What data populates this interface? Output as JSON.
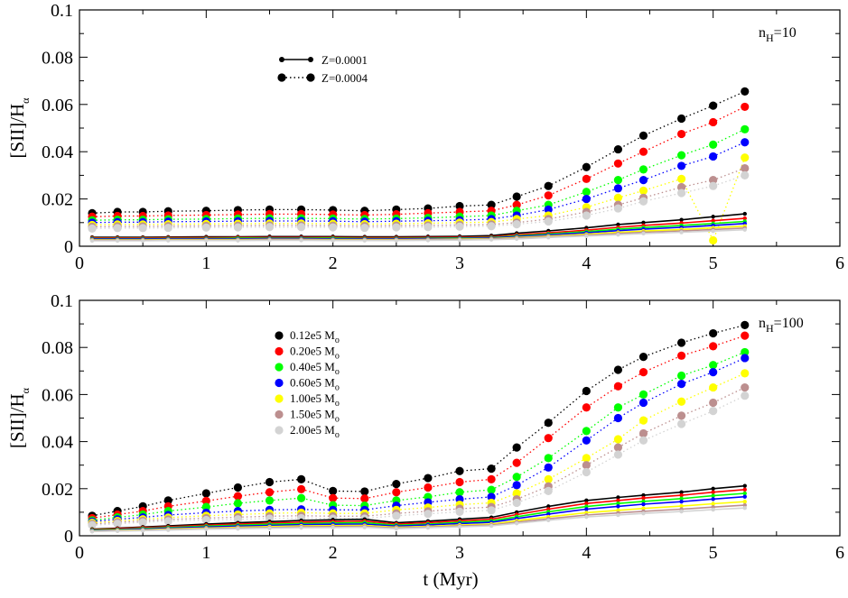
{
  "chart_data": [
    {
      "type": "line",
      "panel": "top",
      "annotation": "n_H=10",
      "annotation_main": "n",
      "annotation_sub": "H",
      "annotation_rest": "=10",
      "ylabel_main": "[SII]/H",
      "ylabel_sub": "α",
      "xlabel": "",
      "xlim": [
        0,
        6
      ],
      "ylim": [
        0,
        0.1
      ],
      "xticks": [
        "0",
        "1",
        "2",
        "3",
        "4",
        "5",
        "6"
      ],
      "yticks": [
        "0",
        "0.02",
        "0.04",
        "0.06",
        "0.08",
        "0.1"
      ],
      "legend": [
        {
          "label": "Z=0.0001",
          "style": "solid"
        },
        {
          "label": "Z=0.0004",
          "style": "dotted"
        }
      ],
      "x": [
        0.1,
        0.3,
        0.5,
        0.7,
        1.0,
        1.25,
        1.5,
        1.75,
        2.0,
        2.25,
        2.5,
        2.75,
        3.0,
        3.25,
        3.45,
        3.7,
        4.0,
        4.25,
        4.45,
        4.75,
        5.0,
        5.25
      ],
      "series": [
        {
          "name": "0.12e5 Mo Z=0.0004",
          "color": "#000000",
          "style": "dotted",
          "values": [
            0.014,
            0.0145,
            0.0145,
            0.0148,
            0.015,
            0.0153,
            0.0155,
            0.0155,
            0.0153,
            0.015,
            0.0155,
            0.016,
            0.017,
            0.0175,
            0.021,
            0.0255,
            0.0335,
            0.041,
            0.0468,
            0.054,
            0.0595,
            0.0655
          ]
        },
        {
          "name": "0.20e5 Mo Z=0.0004",
          "color": "#ff0000",
          "style": "dotted",
          "values": [
            0.0125,
            0.0128,
            0.0128,
            0.013,
            0.0132,
            0.0134,
            0.0136,
            0.0136,
            0.0134,
            0.0132,
            0.0135,
            0.014,
            0.0145,
            0.015,
            0.0175,
            0.0215,
            0.0285,
            0.035,
            0.04,
            0.0475,
            0.0525,
            0.059
          ]
        },
        {
          "name": "0.40e5 Mo Z=0.0004",
          "color": "#00ff00",
          "style": "dotted",
          "values": [
            0.011,
            0.0112,
            0.0112,
            0.0114,
            0.0115,
            0.0117,
            0.0118,
            0.0118,
            0.0117,
            0.0115,
            0.0117,
            0.012,
            0.0125,
            0.013,
            0.015,
            0.0175,
            0.023,
            0.028,
            0.0325,
            0.0385,
            0.043,
            0.0495
          ]
        },
        {
          "name": "0.60e5 Mo Z=0.0004",
          "color": "#0000ff",
          "style": "dotted",
          "values": [
            0.01,
            0.0102,
            0.0102,
            0.0104,
            0.0105,
            0.0106,
            0.0107,
            0.0107,
            0.0106,
            0.0104,
            0.0106,
            0.0108,
            0.011,
            0.0115,
            0.013,
            0.0155,
            0.02,
            0.0245,
            0.028,
            0.034,
            0.038,
            0.044
          ]
        },
        {
          "name": "1.00e5 Mo Z=0.0004",
          "color": "#ffff00",
          "style": "dotted",
          "values": [
            0.009,
            0.0092,
            0.0092,
            0.0093,
            0.0094,
            0.0095,
            0.0096,
            0.0096,
            0.0095,
            0.0093,
            0.0095,
            0.0097,
            0.01,
            0.0102,
            0.0115,
            0.013,
            0.0165,
            0.0205,
            0.0235,
            0.0285,
            0.0025,
            0.0375
          ]
        },
        {
          "name": "1.50e5 Mo Z=0.0004",
          "color": "#bc8f8f",
          "style": "dotted",
          "values": [
            0.0082,
            0.0084,
            0.0084,
            0.0085,
            0.0086,
            0.0087,
            0.0088,
            0.0088,
            0.0087,
            0.0085,
            0.0087,
            0.0088,
            0.009,
            0.0092,
            0.01,
            0.0115,
            0.0145,
            0.0175,
            0.0205,
            0.025,
            0.028,
            0.033
          ]
        },
        {
          "name": "2.00e5 Mo Z=0.0004",
          "color": "#d3d3d3",
          "style": "dotted",
          "values": [
            0.0075,
            0.0077,
            0.0077,
            0.0078,
            0.0079,
            0.008,
            0.0081,
            0.0081,
            0.008,
            0.0078,
            0.008,
            0.0081,
            0.0083,
            0.0085,
            0.0093,
            0.0105,
            0.013,
            0.016,
            0.019,
            0.0225,
            0.0255,
            0.03
          ]
        },
        {
          "name": "0.12e5 Mo Z=0.0001",
          "color": "#000000",
          "style": "solid",
          "values": [
            0.0038,
            0.0038,
            0.0038,
            0.0039,
            0.004,
            0.004,
            0.0041,
            0.0041,
            0.0041,
            0.004,
            0.004,
            0.0041,
            0.0042,
            0.0045,
            0.0055,
            0.0065,
            0.0078,
            0.0092,
            0.01,
            0.0112,
            0.0125,
            0.0137
          ]
        },
        {
          "name": "0.20e5 Mo Z=0.0001",
          "color": "#ff0000",
          "style": "solid",
          "values": [
            0.0035,
            0.0035,
            0.0035,
            0.0036,
            0.0036,
            0.0037,
            0.0037,
            0.0037,
            0.0037,
            0.0036,
            0.0036,
            0.0037,
            0.0038,
            0.004,
            0.0048,
            0.0057,
            0.0068,
            0.008,
            0.0088,
            0.0098,
            0.0108,
            0.0118
          ]
        },
        {
          "name": "0.40e5 Mo Z=0.0001",
          "color": "#00ff00",
          "style": "solid",
          "values": [
            0.0032,
            0.0032,
            0.0032,
            0.0033,
            0.0033,
            0.0034,
            0.0034,
            0.0034,
            0.0034,
            0.0033,
            0.0033,
            0.0034,
            0.0035,
            0.0037,
            0.0044,
            0.0052,
            0.0062,
            0.0072,
            0.0079,
            0.0088,
            0.0096,
            0.0105
          ]
        },
        {
          "name": "0.60e5 Mo Z=0.0001",
          "color": "#0000ff",
          "style": "solid",
          "values": [
            0.003,
            0.003,
            0.003,
            0.0031,
            0.0031,
            0.0031,
            0.0032,
            0.0032,
            0.0031,
            0.0031,
            0.0031,
            0.0032,
            0.0033,
            0.0035,
            0.0041,
            0.0048,
            0.0057,
            0.0066,
            0.0072,
            0.008,
            0.0088,
            0.0096
          ]
        },
        {
          "name": "1.00e5 Mo Z=0.0001",
          "color": "#ffff00",
          "style": "solid",
          "values": [
            0.0027,
            0.0027,
            0.0027,
            0.0028,
            0.0028,
            0.0028,
            0.0029,
            0.0029,
            0.0028,
            0.0028,
            0.0028,
            0.0029,
            0.003,
            0.0032,
            0.0037,
            0.0043,
            0.0051,
            0.0059,
            0.0064,
            0.0071,
            0.0078,
            0.0085
          ]
        },
        {
          "name": "1.50e5 Mo Z=0.0001",
          "color": "#bc8f8f",
          "style": "solid",
          "values": [
            0.0025,
            0.0025,
            0.0025,
            0.0026,
            0.0026,
            0.0026,
            0.0027,
            0.0027,
            0.0026,
            0.0026,
            0.0026,
            0.0027,
            0.0028,
            0.003,
            0.0034,
            0.004,
            0.0047,
            0.0054,
            0.0059,
            0.0065,
            0.0071,
            0.0077
          ]
        },
        {
          "name": "2.00e5 Mo Z=0.0001",
          "color": "#d3d3d3",
          "style": "solid",
          "values": [
            0.0023,
            0.0023,
            0.0023,
            0.0024,
            0.0024,
            0.0024,
            0.0025,
            0.0025,
            0.0024,
            0.0024,
            0.0024,
            0.0025,
            0.0026,
            0.0028,
            0.0031,
            0.0037,
            0.0043,
            0.0049,
            0.0054,
            0.0059,
            0.0064,
            0.007
          ]
        }
      ]
    },
    {
      "type": "line",
      "panel": "bottom",
      "annotation": "n_H=100",
      "annotation_main": "n",
      "annotation_sub": "H",
      "annotation_rest": "=100",
      "ylabel_main": "[SII]/H",
      "ylabel_sub": "α",
      "xlabel": "t (Myr)",
      "xlim": [
        0,
        6
      ],
      "ylim": [
        0,
        0.1
      ],
      "xticks": [
        "0",
        "1",
        "2",
        "3",
        "4",
        "5",
        "6"
      ],
      "yticks": [
        "0",
        "0.02",
        "0.04",
        "0.06",
        "0.08",
        "0.1"
      ],
      "legend": [
        {
          "label_main": "0.12e5 M",
          "label_sub": "o",
          "color": "#000000"
        },
        {
          "label_main": "0.20e5 M",
          "label_sub": "o",
          "color": "#ff0000"
        },
        {
          "label_main": "0.40e5 M",
          "label_sub": "o",
          "color": "#00ff00"
        },
        {
          "label_main": "0.60e5 M",
          "label_sub": "o",
          "color": "#0000ff"
        },
        {
          "label_main": "1.00e5 M",
          "label_sub": "o",
          "color": "#ffff00"
        },
        {
          "label_main": "1.50e5 M",
          "label_sub": "o",
          "color": "#bc8f8f"
        },
        {
          "label_main": "2.00e5 M",
          "label_sub": "o",
          "color": "#d3d3d3"
        }
      ],
      "x": [
        0.1,
        0.3,
        0.5,
        0.7,
        1.0,
        1.25,
        1.5,
        1.75,
        2.0,
        2.25,
        2.5,
        2.75,
        3.0,
        3.25,
        3.45,
        3.7,
        4.0,
        4.25,
        4.45,
        4.75,
        5.0,
        5.25
      ],
      "series": [
        {
          "name": "0.12e5 Mo Z=0.0004",
          "color": "#000000",
          "style": "dotted",
          "values": [
            0.0085,
            0.0105,
            0.0125,
            0.015,
            0.018,
            0.0205,
            0.0228,
            0.024,
            0.019,
            0.0188,
            0.022,
            0.0245,
            0.0275,
            0.0285,
            0.0375,
            0.048,
            0.0615,
            0.0705,
            0.076,
            0.082,
            0.086,
            0.0895
          ]
        },
        {
          "name": "0.20e5 Mo Z=0.0004",
          "color": "#ff0000",
          "style": "dotted",
          "values": [
            0.0075,
            0.009,
            0.0105,
            0.0125,
            0.0148,
            0.0168,
            0.0185,
            0.0198,
            0.016,
            0.0158,
            0.0185,
            0.0205,
            0.0228,
            0.024,
            0.031,
            0.0415,
            0.0545,
            0.0635,
            0.0695,
            0.0765,
            0.0805,
            0.085
          ]
        },
        {
          "name": "0.40e5 Mo Z=0.0004",
          "color": "#00ff00",
          "style": "dotted",
          "values": [
            0.0065,
            0.0078,
            0.009,
            0.0105,
            0.0122,
            0.0138,
            0.015,
            0.016,
            0.013,
            0.0128,
            0.015,
            0.0165,
            0.0185,
            0.0195,
            0.025,
            0.033,
            0.0445,
            0.0545,
            0.06,
            0.068,
            0.0725,
            0.078
          ]
        },
        {
          "name": "0.60e5 Mo Z=0.0004",
          "color": "#0000ff",
          "style": "dotted",
          "values": [
            0.006,
            0.007,
            0.0078,
            0.0088,
            0.0098,
            0.0105,
            0.011,
            0.0112,
            0.011,
            0.011,
            0.0128,
            0.0142,
            0.0155,
            0.0165,
            0.0215,
            0.029,
            0.0405,
            0.05,
            0.0565,
            0.0645,
            0.0695,
            0.0755
          ]
        },
        {
          "name": "1.00e5 Mo Z=0.0004",
          "color": "#ffff00",
          "style": "dotted",
          "values": [
            0.0055,
            0.0063,
            0.007,
            0.0077,
            0.0085,
            0.009,
            0.0095,
            0.0098,
            0.0095,
            0.0095,
            0.011,
            0.012,
            0.0132,
            0.014,
            0.018,
            0.024,
            0.033,
            0.041,
            0.049,
            0.057,
            0.063,
            0.069
          ]
        },
        {
          "name": "1.50e5 Mo Z=0.0004",
          "color": "#bc8f8f",
          "style": "dotted",
          "values": [
            0.005,
            0.0057,
            0.0063,
            0.0069,
            0.0075,
            0.0079,
            0.0083,
            0.0085,
            0.0083,
            0.0083,
            0.0095,
            0.0104,
            0.0115,
            0.0122,
            0.0155,
            0.021,
            0.03,
            0.0375,
            0.0435,
            0.051,
            0.0565,
            0.063
          ]
        },
        {
          "name": "2.00e5 Mo Z=0.0004",
          "color": "#d3d3d3",
          "style": "dotted",
          "values": [
            0.0045,
            0.0051,
            0.0057,
            0.0062,
            0.0067,
            0.007,
            0.0073,
            0.0075,
            0.0073,
            0.0073,
            0.0085,
            0.0093,
            0.0102,
            0.0108,
            0.014,
            0.019,
            0.027,
            0.0345,
            0.0405,
            0.0475,
            0.053,
            0.0595
          ]
        },
        {
          "name": "0.12e5 Mo Z=0.0001",
          "color": "#000000",
          "style": "solid",
          "values": [
            0.0028,
            0.0032,
            0.0037,
            0.0042,
            0.005,
            0.0055,
            0.006,
            0.0065,
            0.0068,
            0.007,
            0.0055,
            0.0062,
            0.007,
            0.0078,
            0.01,
            0.0125,
            0.015,
            0.0163,
            0.0172,
            0.0185,
            0.02,
            0.0212
          ]
        },
        {
          "name": "0.20e5 Mo Z=0.0001",
          "color": "#ff0000",
          "style": "solid",
          "values": [
            0.0026,
            0.003,
            0.0034,
            0.0038,
            0.0045,
            0.005,
            0.0054,
            0.0058,
            0.006,
            0.0062,
            0.005,
            0.0056,
            0.0063,
            0.007,
            0.009,
            0.0113,
            0.0137,
            0.015,
            0.016,
            0.0172,
            0.0185,
            0.0196
          ]
        },
        {
          "name": "0.40e5 Mo Z=0.0001",
          "color": "#00ff00",
          "style": "solid",
          "values": [
            0.0024,
            0.0027,
            0.0031,
            0.0035,
            0.0041,
            0.0045,
            0.0049,
            0.0052,
            0.0054,
            0.0056,
            0.0045,
            0.005,
            0.0057,
            0.0063,
            0.0081,
            0.0102,
            0.0124,
            0.0137,
            0.0146,
            0.0158,
            0.017,
            0.018
          ]
        },
        {
          "name": "0.60e5 Mo Z=0.0001",
          "color": "#0000ff",
          "style": "solid",
          "values": [
            0.0022,
            0.0025,
            0.0028,
            0.0032,
            0.0037,
            0.0041,
            0.0044,
            0.0047,
            0.0049,
            0.005,
            0.0041,
            0.0046,
            0.0052,
            0.0057,
            0.0073,
            0.0092,
            0.0113,
            0.0125,
            0.0134,
            0.0145,
            0.0156,
            0.0166
          ]
        },
        {
          "name": "1.00e5 Mo Z=0.0001",
          "color": "#ffff00",
          "style": "solid",
          "values": [
            0.002,
            0.0023,
            0.0025,
            0.0029,
            0.0033,
            0.0036,
            0.0039,
            0.0042,
            0.0043,
            0.0044,
            0.0036,
            0.004,
            0.0046,
            0.005,
            0.0064,
            0.008,
            0.0098,
            0.0108,
            0.0116,
            0.0126,
            0.0136,
            0.0145
          ]
        },
        {
          "name": "1.50e5 Mo Z=0.0001",
          "color": "#bc8f8f",
          "style": "solid",
          "values": [
            0.0019,
            0.0021,
            0.0023,
            0.0026,
            0.003,
            0.0033,
            0.0035,
            0.0038,
            0.0039,
            0.004,
            0.0033,
            0.0037,
            0.0042,
            0.0046,
            0.0058,
            0.0072,
            0.0088,
            0.0097,
            0.0104,
            0.0113,
            0.0122,
            0.013
          ]
        },
        {
          "name": "2.00e5 Mo Z=0.0001",
          "color": "#d3d3d3",
          "style": "solid",
          "values": [
            0.0018,
            0.002,
            0.0022,
            0.0024,
            0.0028,
            0.003,
            0.0032,
            0.0034,
            0.0035,
            0.0036,
            0.003,
            0.0034,
            0.0038,
            0.0042,
            0.0053,
            0.0066,
            0.008,
            0.0088,
            0.0095,
            0.0103,
            0.0111,
            0.0118
          ]
        }
      ]
    }
  ]
}
